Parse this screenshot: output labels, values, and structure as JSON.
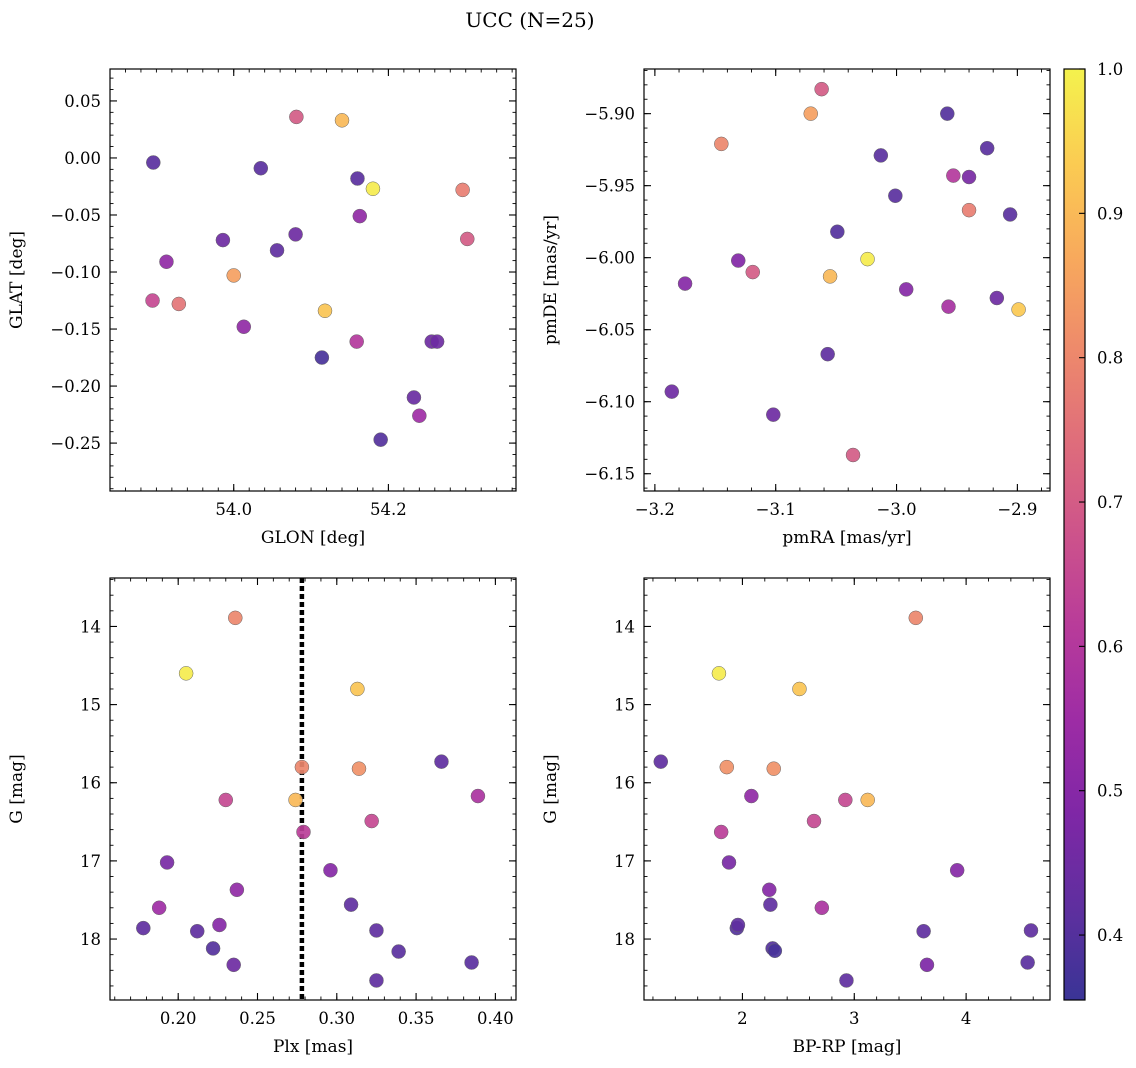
{
  "title": "UCC (N=25)",
  "colormap": {
    "name": "plasma",
    "range": [
      0.355,
      1.0
    ],
    "ticks": [
      0.4,
      0.5,
      0.6,
      0.7,
      0.8,
      0.9,
      1.0
    ],
    "tick_labels": [
      "0.4",
      "0.5",
      "0.6",
      "0.7",
      "0.8",
      "0.9",
      "1.0"
    ]
  },
  "chart_data": [
    {
      "type": "scatter",
      "id": "glon-glat",
      "xlabel": "GLON [deg]",
      "ylabel": "GLAT [deg]",
      "xlim": [
        53.84,
        54.365
      ],
      "ylim": [
        -0.292,
        0.078
      ],
      "xticks": [
        54.0,
        54.2
      ],
      "xtick_labels": [
        "54.0",
        "54.2"
      ],
      "yticks": [
        0.05,
        0.0,
        -0.05,
        -0.1,
        -0.15,
        -0.2,
        -0.25
      ],
      "ytick_labels": [
        "0.05",
        "0.00",
        "−0.05",
        "−0.10",
        "−0.15",
        "−0.20",
        "−0.25"
      ],
      "x": [
        53.896,
        53.913,
        53.895,
        53.929,
        53.986,
        54.0,
        54.013,
        54.035,
        54.056,
        54.08,
        54.081,
        54.114,
        54.118,
        54.14,
        54.16,
        54.159,
        54.163,
        54.18,
        54.19,
        54.233,
        54.24,
        54.256,
        54.263,
        54.296,
        54.302
      ],
      "y": [
        -0.004,
        -0.091,
        -0.125,
        -0.128,
        -0.072,
        -0.103,
        -0.148,
        -0.009,
        -0.081,
        -0.067,
        0.036,
        -0.175,
        -0.134,
        0.033,
        -0.018,
        -0.161,
        -0.051,
        -0.027,
        -0.247,
        -0.21,
        -0.226,
        -0.161,
        -0.161,
        -0.028,
        -0.071
      ],
      "c": [
        0.41,
        0.52,
        0.65,
        0.76,
        0.45,
        0.85,
        0.52,
        0.41,
        0.42,
        0.45,
        0.7,
        0.38,
        0.92,
        0.9,
        0.41,
        0.6,
        0.52,
        0.99,
        0.4,
        0.44,
        0.55,
        0.45,
        0.45,
        0.78,
        0.7
      ]
    },
    {
      "type": "scatter",
      "id": "pmra-pmde",
      "xlabel": "pmRA [mas/yr]",
      "ylabel": "pmDE [mas/yr]",
      "xlim": [
        -3.209,
        -2.873
      ],
      "ylim": [
        -6.162,
        -5.869
      ],
      "xticks": [
        -3.2,
        -3.1,
        -3.0,
        -2.9
      ],
      "xtick_labels": [
        "−3.2",
        "−3.1",
        "−3.0",
        "−2.9"
      ],
      "yticks": [
        -5.9,
        -5.95,
        -6.0,
        -6.05,
        -6.1,
        -6.15
      ],
      "ytick_labels": [
        "−5.90",
        "−5.95",
        "−6.00",
        "−6.05",
        "−6.10",
        "−6.15"
      ],
      "x": [
        -3.186,
        -3.175,
        -3.145,
        -3.131,
        -3.119,
        -3.102,
        -3.071,
        -3.062,
        -3.055,
        -3.057,
        -3.049,
        -3.036,
        -3.024,
        -3.013,
        -3.001,
        -2.992,
        -2.958,
        -2.957,
        -2.953,
        -2.94,
        -2.94,
        -2.925,
        -2.917,
        -2.906,
        -2.899
      ],
      "y": [
        -6.093,
        -6.018,
        -5.921,
        -6.002,
        -6.01,
        -6.109,
        -5.9,
        -5.883,
        -6.013,
        -6.067,
        -5.982,
        -6.137,
        -6.001,
        -5.929,
        -5.957,
        -6.022,
        -5.9,
        -6.034,
        -5.943,
        -5.944,
        -5.967,
        -5.924,
        -6.028,
        -5.97,
        -6.036
      ],
      "c": [
        0.45,
        0.5,
        0.8,
        0.49,
        0.7,
        0.45,
        0.85,
        0.7,
        0.9,
        0.42,
        0.4,
        0.7,
        0.99,
        0.41,
        0.41,
        0.5,
        0.4,
        0.57,
        0.6,
        0.47,
        0.78,
        0.41,
        0.45,
        0.41,
        0.93
      ]
    },
    {
      "type": "scatter",
      "id": "plx-g",
      "xlabel": "Plx [mas]",
      "ylabel": "G [mag]",
      "xlim": [
        0.157,
        0.413
      ],
      "ylim": [
        18.78,
        13.38
      ],
      "y_inverted": true,
      "xticks": [
        0.2,
        0.25,
        0.3,
        0.35,
        0.4
      ],
      "xtick_labels": [
        "0.20",
        "0.25",
        "0.30",
        "0.35",
        "0.40"
      ],
      "yticks": [
        14,
        15,
        16,
        17,
        18
      ],
      "ytick_labels": [
        "14",
        "15",
        "16",
        "17",
        "18"
      ],
      "vline": 0.278,
      "x": [
        0.178,
        0.188,
        0.193,
        0.205,
        0.212,
        0.222,
        0.226,
        0.23,
        0.235,
        0.236,
        0.237,
        0.274,
        0.278,
        0.279,
        0.296,
        0.309,
        0.313,
        0.314,
        0.322,
        0.325,
        0.325,
        0.339,
        0.366,
        0.385,
        0.389
      ],
      "y": [
        17.86,
        17.6,
        17.02,
        14.6,
        17.9,
        18.12,
        17.82,
        16.22,
        18.33,
        13.89,
        17.37,
        16.22,
        15.8,
        16.63,
        17.12,
        17.56,
        14.8,
        15.82,
        16.49,
        17.89,
        18.53,
        18.16,
        15.73,
        18.3,
        16.17
      ],
      "c": [
        0.42,
        0.55,
        0.47,
        0.99,
        0.42,
        0.4,
        0.5,
        0.65,
        0.45,
        0.8,
        0.52,
        0.9,
        0.8,
        0.62,
        0.5,
        0.42,
        0.92,
        0.82,
        0.65,
        0.42,
        0.42,
        0.41,
        0.42,
        0.41,
        0.58
      ]
    },
    {
      "type": "scatter",
      "id": "bprp-g",
      "xlabel": "BP-RP [mag]",
      "ylabel": "G [mag]",
      "xlim": [
        1.12,
        4.75
      ],
      "ylim": [
        18.78,
        13.38
      ],
      "y_inverted": true,
      "xticks": [
        2,
        3,
        4
      ],
      "xtick_labels": [
        "2",
        "3",
        "4"
      ],
      "yticks": [
        14,
        15,
        16,
        17,
        18
      ],
      "ytick_labels": [
        "14",
        "15",
        "16",
        "17",
        "18"
      ],
      "x": [
        1.27,
        1.79,
        1.81,
        1.86,
        1.88,
        1.95,
        1.96,
        2.08,
        2.24,
        2.25,
        2.27,
        2.28,
        2.29,
        2.51,
        2.64,
        2.71,
        2.92,
        2.93,
        3.12,
        3.55,
        3.62,
        3.65,
        3.92,
        4.55,
        4.58
      ],
      "y": [
        15.73,
        14.6,
        16.63,
        15.8,
        17.02,
        17.86,
        17.82,
        16.17,
        17.37,
        17.56,
        18.12,
        15.82,
        18.15,
        14.8,
        16.49,
        17.6,
        16.22,
        18.53,
        16.22,
        13.89,
        17.9,
        18.33,
        17.12,
        18.3,
        17.89
      ],
      "c": [
        0.42,
        0.99,
        0.62,
        0.82,
        0.47,
        0.4,
        0.42,
        0.52,
        0.5,
        0.42,
        0.4,
        0.82,
        0.38,
        0.92,
        0.65,
        0.58,
        0.65,
        0.42,
        0.9,
        0.8,
        0.42,
        0.48,
        0.5,
        0.41,
        0.42
      ]
    }
  ]
}
